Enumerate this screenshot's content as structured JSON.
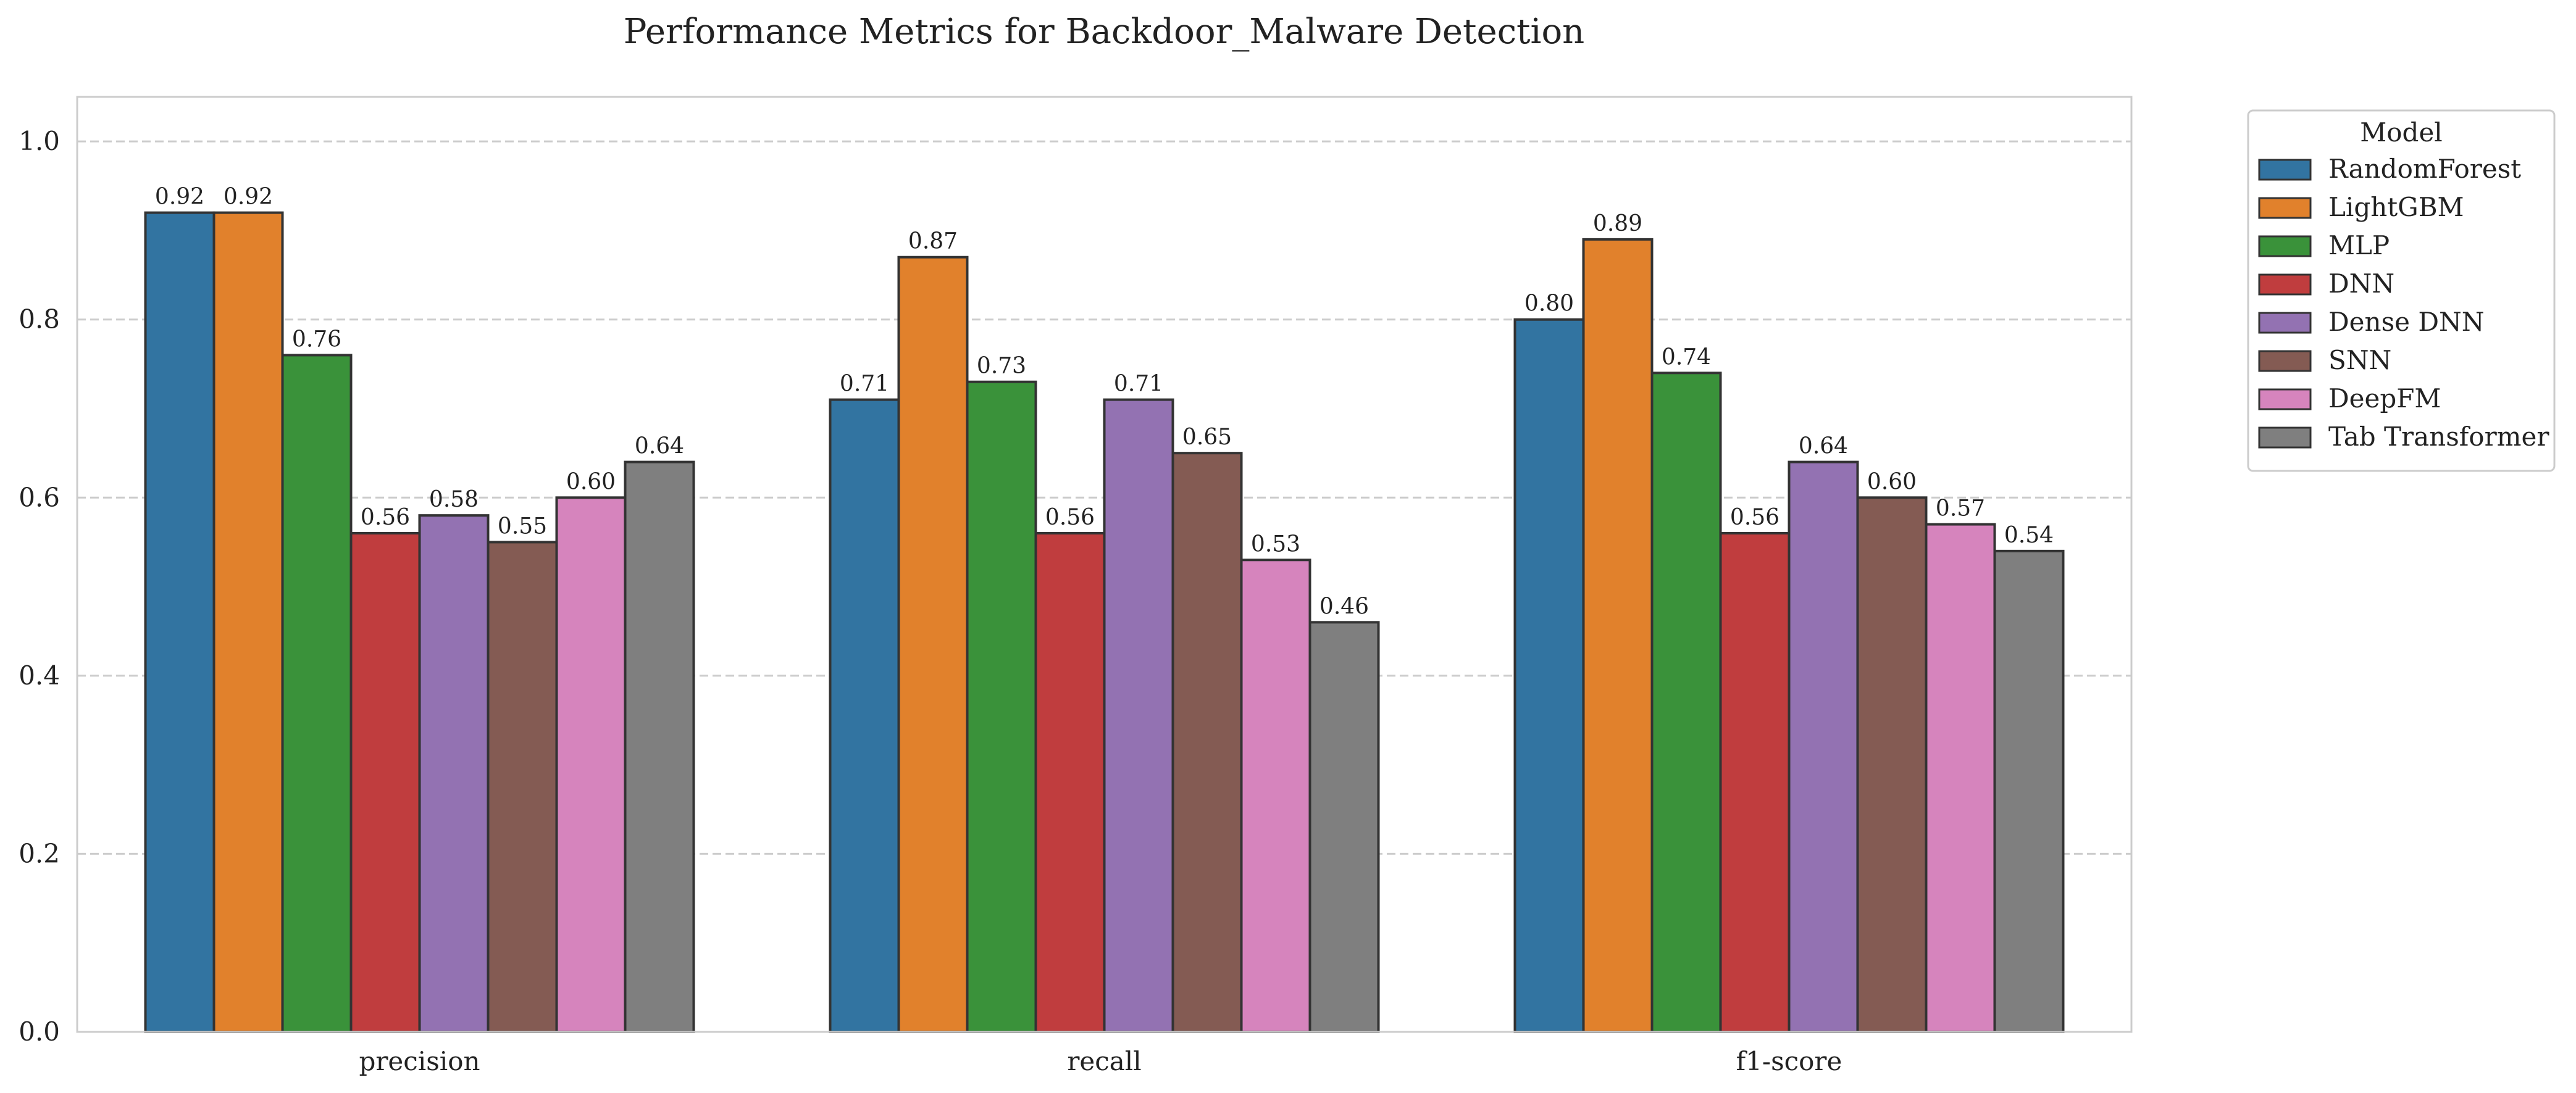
{
  "chart_data": {
    "type": "bar",
    "title": "Performance Metrics for Backdoor_Malware Detection",
    "xlabel": "",
    "ylabel": "",
    "categories": [
      "precision",
      "recall",
      "f1-score"
    ],
    "ylim": [
      0,
      1.05
    ],
    "yticks": [
      "0.0",
      "0.2",
      "0.4",
      "0.6",
      "0.8",
      "1.0"
    ],
    "grid": "horizontal dashed",
    "legend": {
      "title": "Model",
      "placement": "outside-top-right"
    },
    "series": [
      {
        "name": "RandomForest",
        "color": "#3274a1",
        "values": [
          0.92,
          0.71,
          0.8
        ],
        "labels": [
          "0.92",
          "0.71",
          "0.80"
        ]
      },
      {
        "name": "LightGBM",
        "color": "#e1812c",
        "values": [
          0.92,
          0.87,
          0.89
        ],
        "labels": [
          "0.92",
          "0.87",
          "0.89"
        ]
      },
      {
        "name": "MLP",
        "color": "#3a923a",
        "values": [
          0.76,
          0.73,
          0.74
        ],
        "labels": [
          "0.76",
          "0.73",
          "0.74"
        ]
      },
      {
        "name": "DNN",
        "color": "#c03d3e",
        "values": [
          0.56,
          0.56,
          0.56
        ],
        "labels": [
          "0.56",
          "0.56",
          "0.56"
        ]
      },
      {
        "name": "Dense DNN",
        "color": "#9372b2",
        "values": [
          0.58,
          0.71,
          0.64
        ],
        "labels": [
          "0.58",
          "0.71",
          "0.64"
        ]
      },
      {
        "name": "SNN",
        "color": "#845b53",
        "values": [
          0.55,
          0.65,
          0.6
        ],
        "labels": [
          "0.55",
          "0.65",
          "0.60"
        ]
      },
      {
        "name": "DeepFM",
        "color": "#d684bd",
        "values": [
          0.6,
          0.53,
          0.57
        ],
        "labels": [
          "0.60",
          "0.53",
          "0.57"
        ]
      },
      {
        "name": "Tab Transformer",
        "color": "#7f7f7f",
        "values": [
          0.64,
          0.46,
          0.54
        ],
        "labels": [
          "0.64",
          "0.46",
          "0.54"
        ]
      }
    ]
  }
}
